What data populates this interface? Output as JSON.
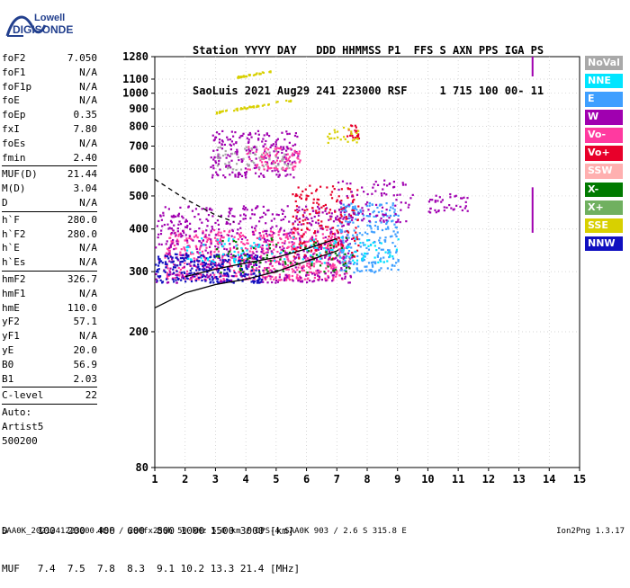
{
  "logo": {
    "line1": "Lowell",
    "line2": "DIGISONDE"
  },
  "header": {
    "line1": "Station YYYY DAY   DDD HHMMSS P1  FFS S AXN PPS IGA PS",
    "line2": "SaoLuis 2021 Aug29 241 223000 RSF     1 715 100 00- 11"
  },
  "params_groups": [
    [
      {
        "name": "foF2",
        "value": "7.050"
      },
      {
        "name": "foF1",
        "value": "N/A"
      },
      {
        "name": "foF1p",
        "value": "N/A"
      },
      {
        "name": "foE",
        "value": "N/A"
      },
      {
        "name": "foEp",
        "value": "0.35"
      },
      {
        "name": "fxI",
        "value": "7.80"
      },
      {
        "name": "foEs",
        "value": "N/A"
      },
      {
        "name": "fmin",
        "value": "2.40"
      }
    ],
    [
      {
        "name": "MUF(D)",
        "value": "21.44"
      },
      {
        "name": "M(D)",
        "value": "3.04"
      },
      {
        "name": "D",
        "value": "N/A"
      }
    ],
    [
      {
        "name": "h`F",
        "value": "280.0"
      },
      {
        "name": "h`F2",
        "value": "280.0"
      },
      {
        "name": "h`E",
        "value": "N/A"
      },
      {
        "name": "h`Es",
        "value": "N/A"
      }
    ],
    [
      {
        "name": "hmF2",
        "value": "326.7"
      },
      {
        "name": "hmF1",
        "value": "N/A"
      },
      {
        "name": "hmE",
        "value": "110.0"
      },
      {
        "name": "yF2",
        "value": "57.1"
      },
      {
        "name": "yF1",
        "value": "N/A"
      },
      {
        "name": "yE",
        "value": "20.0"
      },
      {
        "name": "B0",
        "value": "56.9"
      },
      {
        "name": "B1",
        "value": "2.03"
      }
    ],
    [
      {
        "name": "C-level",
        "value": "22"
      }
    ]
  ],
  "autoscale": [
    "Auto:",
    "Artist5",
    "500200"
  ],
  "legend": [
    {
      "label": "NoVal",
      "color": "#a9a9a9"
    },
    {
      "label": "NNE",
      "color": "#00e5ff"
    },
    {
      "label": "E",
      "color": "#3f9fff"
    },
    {
      "label": "W",
      "color": "#a000b0"
    },
    {
      "label": "Vo-",
      "color": "#ff3aa0"
    },
    {
      "label": "Vo+",
      "color": "#e8002a"
    },
    {
      "label": "SSW",
      "color": "#ffb0b0"
    },
    {
      "label": "X-",
      "color": "#007a00"
    },
    {
      "label": "X+",
      "color": "#70b060"
    },
    {
      "label": "SSE",
      "color": "#d8d000"
    },
    {
      "label": "NNW",
      "color": "#1010c0"
    }
  ],
  "chart_data": {
    "type": "scatter",
    "title": "",
    "xlabel": "",
    "ylabel": "",
    "xlim": [
      1,
      15
    ],
    "ylim": [
      80,
      1280
    ],
    "y_scale": "log",
    "x_ticks": [
      1,
      2,
      3,
      4,
      5,
      6,
      7,
      8,
      9,
      10,
      11,
      12,
      13,
      14,
      15
    ],
    "y_ticks": [
      80,
      200,
      300,
      400,
      500,
      600,
      700,
      800,
      900,
      1000,
      1100,
      1280
    ],
    "grid": "dotted",
    "clusters": [
      {
        "name": "O-trace lower",
        "color": "#ff3aa0",
        "x_range": [
          1.3,
          7.3
        ],
        "y_range": [
          285,
          400
        ],
        "count": 700
      },
      {
        "name": "W band",
        "color": "#a000b0",
        "x_range": [
          1.0,
          7.5
        ],
        "y_range": [
          280,
          470
        ],
        "count": 600
      },
      {
        "name": "NNW band",
        "color": "#1010c0",
        "x_range": [
          1.0,
          4.5
        ],
        "y_range": [
          280,
          340
        ],
        "count": 250
      },
      {
        "name": "E band",
        "color": "#3f9fff",
        "x_range": [
          7.0,
          9.0
        ],
        "y_range": [
          300,
          480
        ],
        "count": 250
      },
      {
        "name": "Vo+ core",
        "color": "#e8002a",
        "x_range": [
          5.5,
          7.7
        ],
        "y_range": [
          330,
          540
        ],
        "count": 180
      },
      {
        "name": "NNE spread",
        "color": "#00e5ff",
        "x_range": [
          2.0,
          9.0
        ],
        "y_range": [
          320,
          380
        ],
        "count": 120
      },
      {
        "name": "X- scatter",
        "color": "#007a00",
        "x_range": [
          3.0,
          7.5
        ],
        "y_range": [
          300,
          380
        ],
        "count": 80
      },
      {
        "name": "2nd hop W",
        "color": "#a000b0",
        "x_range": [
          2.8,
          5.7
        ],
        "y_range": [
          570,
          780
        ],
        "count": 220
      },
      {
        "name": "2nd hop Vo-",
        "color": "#ff3aa0",
        "x_range": [
          4.0,
          5.8
        ],
        "y_range": [
          600,
          700
        ],
        "count": 80
      },
      {
        "name": "2nd hop NoVal",
        "color": "#a9a9a9",
        "x_range": [
          3.0,
          5.5
        ],
        "y_range": [
          600,
          700
        ],
        "count": 60
      },
      {
        "name": "W upper",
        "color": "#a000b0",
        "x_range": [
          7.0,
          9.5
        ],
        "y_range": [
          420,
          560
        ],
        "count": 90
      },
      {
        "name": "W right",
        "color": "#a000b0",
        "x_range": [
          10.0,
          11.3
        ],
        "y_range": [
          450,
          510
        ],
        "count": 40
      },
      {
        "name": "Vo+ 800",
        "color": "#e8002a",
        "x_range": [
          7.3,
          7.7
        ],
        "y_range": [
          740,
          810
        ],
        "count": 20
      },
      {
        "name": "SSE 800",
        "color": "#d8d000",
        "x_range": [
          6.6,
          7.7
        ],
        "y_range": [
          720,
          800
        ],
        "count": 25
      }
    ],
    "streaks": [
      {
        "color": "#d8d000",
        "x": [
          3.0,
          5.5
        ],
        "y": [
          880,
          960
        ],
        "count": 45
      },
      {
        "color": "#d8d000",
        "x": [
          3.7,
          4.8
        ],
        "y": [
          1120,
          1165
        ],
        "count": 30
      }
    ],
    "vertical_lines": [
      {
        "color": "#a000b0",
        "x": 13.45,
        "y": [
          1120,
          1280
        ]
      },
      {
        "color": "#a000b0",
        "x": 13.45,
        "y": [
          390,
          530
        ]
      }
    ],
    "virtual_height_curve": {
      "color": "#000000",
      "x": [
        1.0,
        2.0,
        3.0,
        4.0,
        5.0,
        6.0,
        7.0,
        7.05
      ],
      "y": [
        235,
        260,
        275,
        285,
        300,
        322,
        345,
        348
      ]
    },
    "profile_dashed": {
      "color": "#000000",
      "x": [
        1.0,
        2.0,
        3.0,
        3.6
      ],
      "y": [
        560,
        490,
        440,
        420
      ]
    },
    "profile_solid": {
      "color": "#000000",
      "x": [
        2.0,
        3.0,
        4.0,
        5.0,
        6.0,
        7.0
      ],
      "y": [
        290,
        305,
        318,
        330,
        350,
        375
      ]
    }
  },
  "muf_table": {
    "line1": "D     100  200  400  600  800 1000 1500 3000 [km]",
    "line2": "MUF   7.4  7.5  7.8  8.3  9.1 10.2 13.3 21.4 [MHz]"
  },
  "footer": {
    "text": "SAA0K_2021241223000.RSF / 280fx256h 50 kHz 5.0 km / DPS-4 SAA0K 903 / 2.6 S 315.8 E",
    "version": "Ion2Png 1.3.17"
  }
}
